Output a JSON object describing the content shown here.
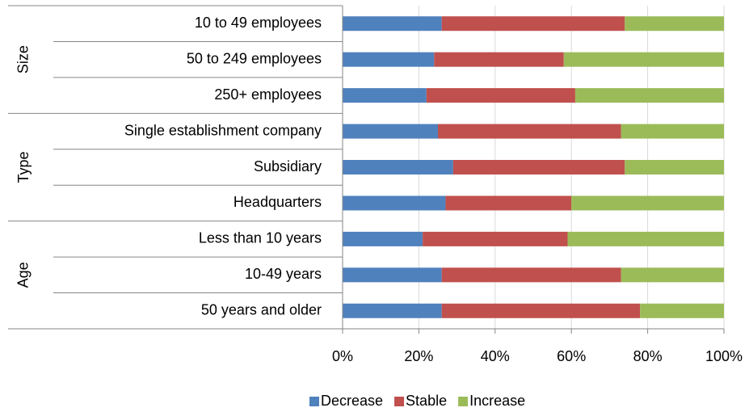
{
  "chart_data": {
    "type": "stacked_barh_percent",
    "groups": [
      {
        "name": "Size",
        "categories": [
          "10 to 49 employees",
          "50 to 249 employees",
          "250+ employees"
        ]
      },
      {
        "name": "Type",
        "categories": [
          "Single establishment company",
          "Subsidiary",
          "Headquarters"
        ]
      },
      {
        "name": "Age",
        "categories": [
          "Less than 10 years",
          "10-49 years",
          "50 years and older"
        ]
      }
    ],
    "series": [
      {
        "name": "Decrease",
        "color": "#4f81bd",
        "values": [
          26,
          24,
          22,
          25,
          29,
          27,
          21,
          26,
          26
        ]
      },
      {
        "name": "Stable",
        "color": "#c0504d",
        "values": [
          48,
          34,
          39,
          48,
          45,
          33,
          38,
          47,
          52
        ]
      },
      {
        "name": "Increase",
        "color": "#9bbb59",
        "values": [
          26,
          42,
          39,
          27,
          26,
          40,
          41,
          27,
          22
        ]
      }
    ],
    "xlim": [
      0,
      100
    ],
    "xticks": [
      {
        "value": 0,
        "label": "0%"
      },
      {
        "value": 20,
        "label": "20%"
      },
      {
        "value": 40,
        "label": "40%"
      },
      {
        "value": 60,
        "label": "60%"
      },
      {
        "value": 80,
        "label": "80%"
      },
      {
        "value": 100,
        "label": "100%"
      }
    ],
    "grid": true,
    "legend": "bottom"
  }
}
